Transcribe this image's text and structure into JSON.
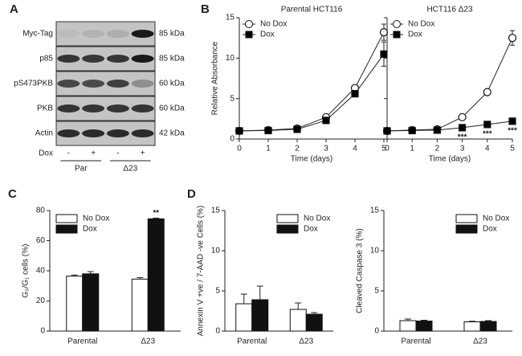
{
  "panels": [
    "A",
    "B",
    "C",
    "D"
  ],
  "blot": {
    "rows": [
      {
        "label": "Myc-Tag",
        "size": "85 kDa"
      },
      {
        "label": "p85",
        "size": "85 kDa"
      },
      {
        "label": "pS473PKB",
        "size": "60 kDa"
      },
      {
        "label": "PKB",
        "size": "60 kDa"
      },
      {
        "label": "Actin",
        "size": "42 kDa"
      }
    ],
    "treatment_label": "Dox",
    "lanes": [
      "-",
      "+",
      "-",
      "+"
    ],
    "groups": [
      "Par",
      "Δ23"
    ]
  },
  "chart_data": [
    {
      "type": "line",
      "title": "Parental HCT116",
      "xlabel": "Time (days)",
      "ylabel": "Relative Absorbance",
      "x": [
        0,
        1,
        2,
        3,
        4,
        5
      ],
      "xlim": [
        0,
        5
      ],
      "xticks": [
        0,
        1,
        2,
        3,
        4,
        5
      ],
      "ylim": [
        0,
        15
      ],
      "yticks": [
        0,
        5,
        10,
        15
      ],
      "legend": "upper left",
      "series": [
        {
          "name": "No Dox",
          "color": "#ffffff",
          "marker": "circle",
          "values": [
            1,
            1.1,
            1.3,
            2.7,
            6.3,
            13.2
          ],
          "errors": [
            0.1,
            0.1,
            0.1,
            0.2,
            0.3,
            1.0
          ]
        },
        {
          "name": "Dox",
          "color": "#000000",
          "marker": "square",
          "values": [
            1,
            1.05,
            1.2,
            2.3,
            5.6,
            10.5
          ],
          "errors": [
            0.1,
            0.1,
            0.1,
            0.2,
            0.3,
            1.5
          ]
        }
      ]
    },
    {
      "type": "line",
      "title": "HCT116 Δ23",
      "xlabel": "Time (days)",
      "x": [
        0,
        1,
        2,
        3,
        4,
        5
      ],
      "xlim": [
        0,
        5
      ],
      "xticks": [
        0,
        1,
        2,
        3,
        4,
        5
      ],
      "ylim": [
        0,
        15
      ],
      "yticks": [
        0,
        5,
        10,
        15
      ],
      "legend": "upper left",
      "series": [
        {
          "name": "No Dox",
          "color": "#ffffff",
          "marker": "circle",
          "values": [
            1,
            1.1,
            1.2,
            2.7,
            5.8,
            12.5
          ],
          "errors": [
            0.1,
            0.1,
            0.1,
            0.2,
            0.2,
            0.9
          ]
        },
        {
          "name": "Dox",
          "color": "#000000",
          "marker": "square",
          "values": [
            1,
            1.05,
            1.1,
            1.4,
            1.8,
            2.2
          ],
          "errors": [
            0.1,
            0.1,
            0.1,
            0.1,
            0.1,
            0.1
          ],
          "significance": [
            null,
            null,
            null,
            "***",
            "***",
            "***"
          ]
        }
      ]
    },
    {
      "type": "bar",
      "ylabel": "G₀/G₁ cells (%)",
      "categories": [
        "Parental",
        "Δ23"
      ],
      "ylim": [
        0,
        80
      ],
      "yticks": [
        0,
        20,
        40,
        60,
        80
      ],
      "legend": "upper left",
      "series": [
        {
          "name": "No Dox",
          "color": "#ffffff",
          "values": [
            36.5,
            34.5
          ],
          "errors": [
            0.7,
            1.0
          ]
        },
        {
          "name": "Dox",
          "color": "#111111",
          "values": [
            38,
            74.5
          ],
          "errors": [
            1.5,
            0.5
          ],
          "significance": [
            null,
            "**"
          ]
        }
      ]
    },
    {
      "type": "bar",
      "ylabel": "Annexin V +ve / 7-AAD -ve Cells (%)",
      "categories": [
        "Parental",
        "Δ23"
      ],
      "ylim": [
        0,
        15
      ],
      "yticks": [
        0,
        5,
        10,
        15
      ],
      "legend": "upper right",
      "series": [
        {
          "name": "No Dox",
          "color": "#ffffff",
          "values": [
            3.4,
            2.7
          ],
          "errors": [
            1.2,
            0.8
          ]
        },
        {
          "name": "Dox",
          "color": "#111111",
          "values": [
            3.9,
            2.1
          ],
          "errors": [
            1.7,
            0.2
          ]
        }
      ]
    },
    {
      "type": "bar",
      "ylabel": "Cleaved Caspase 3 (%)",
      "categories": [
        "Parental",
        "Δ23"
      ],
      "ylim": [
        0,
        15
      ],
      "yticks": [
        0,
        5,
        10,
        15
      ],
      "legend": "upper right",
      "series": [
        {
          "name": "No Dox",
          "color": "#ffffff",
          "values": [
            1.3,
            1.15
          ],
          "errors": [
            0.2,
            0.08
          ]
        },
        {
          "name": "Dox",
          "color": "#111111",
          "values": [
            1.25,
            1.2
          ],
          "errors": [
            0.1,
            0.1
          ]
        }
      ]
    }
  ]
}
